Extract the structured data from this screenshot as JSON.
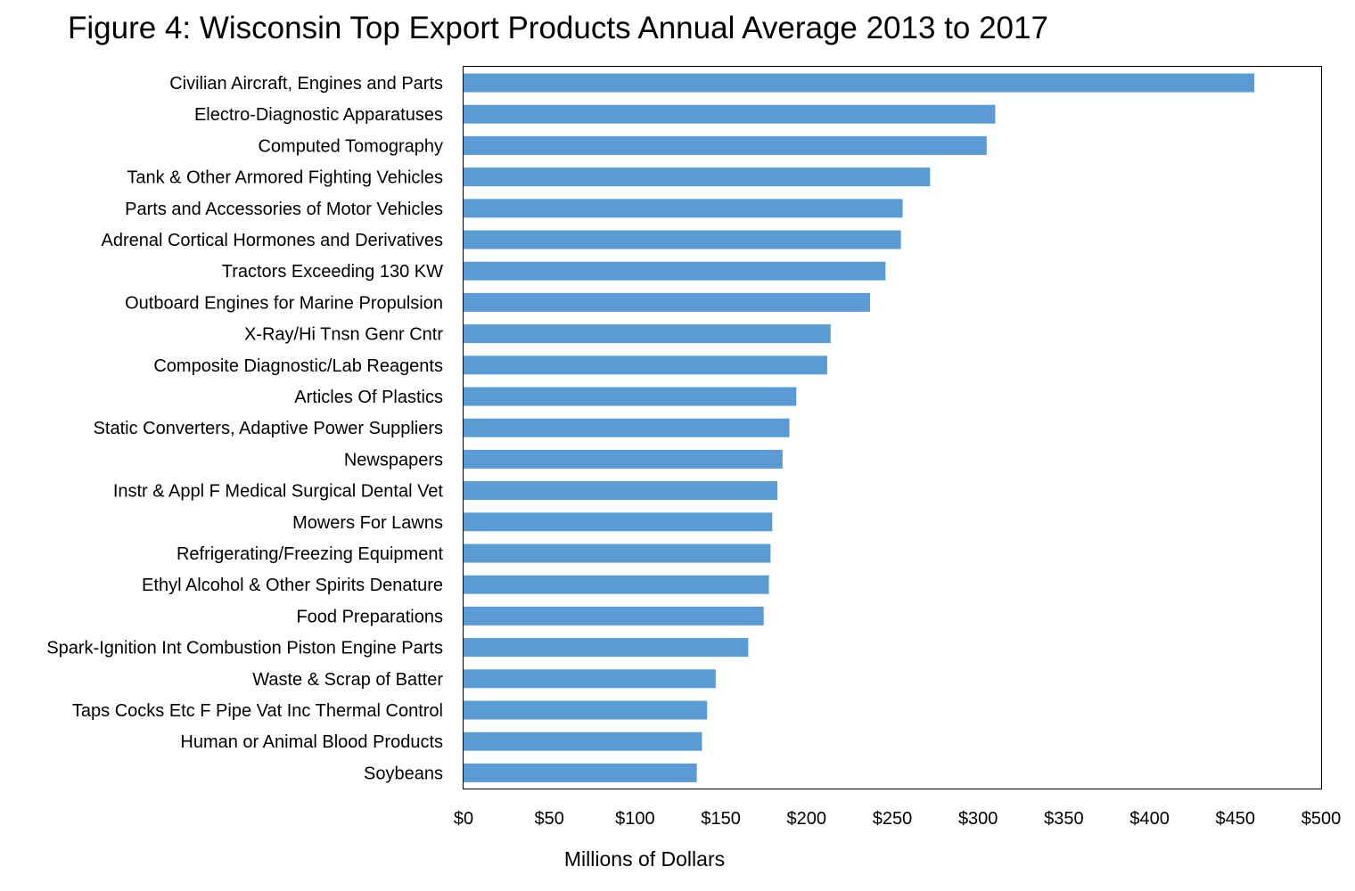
{
  "chart_data": {
    "type": "bar",
    "orientation": "horizontal",
    "title": "Figure 4: Wisconsin Top Export Products Annual Average 2013 to 2017",
    "xlabel": "Millions of Dollars",
    "ylabel": "",
    "xlim": [
      0,
      500
    ],
    "x_ticks": [
      "$0",
      "$50",
      "$100",
      "$150",
      "$200",
      "$250",
      "$300",
      "$350",
      "$400",
      "$450",
      "$500"
    ],
    "grid": false,
    "legend": "none",
    "bar_color": "#5b9bd5",
    "categories": [
      "Civilian Aircraft, Engines and Parts",
      "Electro-Diagnostic Apparatuses",
      "Computed Tomography",
      "Tank & Other Armored Fighting Vehicles",
      "Parts and Accessories of Motor Vehicles",
      "Adrenal Cortical Hormones and Derivatives",
      "Tractors Exceeding 130 KW",
      "Outboard Engines for Marine Propulsion",
      "X-Ray/Hi Tnsn Genr Cntr",
      "Composite Diagnostic/Lab Reagents",
      "Articles Of Plastics",
      "Static Converters, Adaptive Power Suppliers",
      "Newspapers",
      "Instr & Appl F Medical Surgical Dental Vet",
      "Mowers For Lawns",
      "Refrigerating/Freezing Equipment",
      "Ethyl Alcohol & Other Spirits Denature",
      "Food Preparations",
      "Spark-Ignition Int Combustion Piston Engine Parts",
      "Waste & Scrap of Batter",
      "Taps Cocks Etc F Pipe Vat Inc Thermal Control",
      "Human or Animal Blood Products",
      "Soybeans"
    ],
    "values": [
      461,
      310,
      305,
      272,
      256,
      255,
      246,
      237,
      214,
      212,
      194,
      190,
      186,
      183,
      180,
      179,
      178,
      175,
      166,
      147,
      142,
      139,
      136
    ]
  }
}
